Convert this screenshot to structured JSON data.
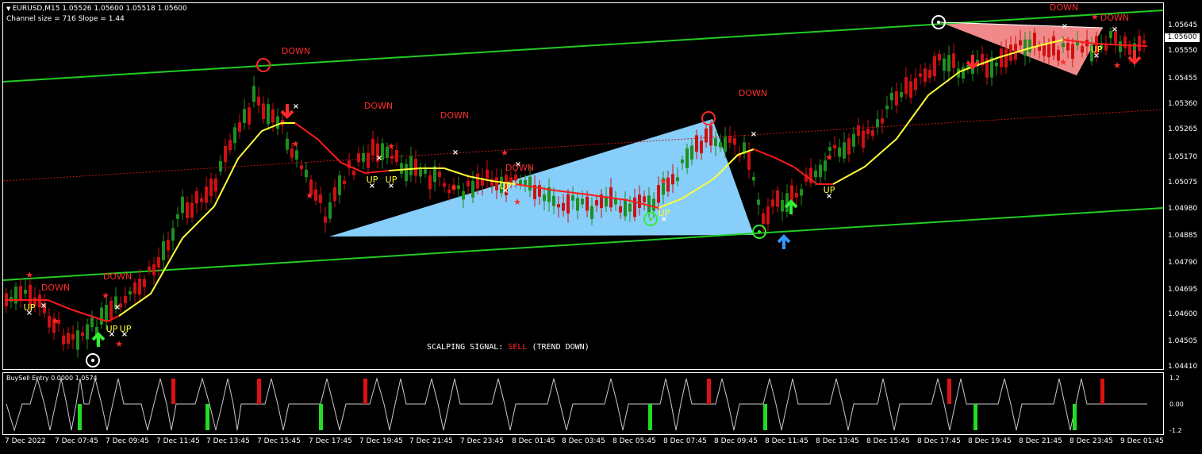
{
  "header": {
    "symbol_line": "EURUSD,M15  1.05526 1.05600 1.05518 1.05600",
    "channel_line": "Channel size = 716 Slope = 1.44"
  },
  "signal": {
    "prefix": "SCALPING SIGNAL: ",
    "action": "SELL",
    "suffix": " (TREND DOWN)"
  },
  "price_axis": {
    "current_price": "1.05600",
    "labels": [
      "1.05645",
      "1.05550",
      "1.05455",
      "1.05360",
      "1.05265",
      "1.05170",
      "1.05075",
      "1.04980",
      "1.04885",
      "1.04790",
      "1.04695",
      "1.04600",
      "1.04505",
      "1.04410"
    ]
  },
  "time_axis": {
    "labels": [
      "7 Dec 2022",
      "7 Dec 07:45",
      "7 Dec 09:45",
      "7 Dec 11:45",
      "7 Dec 13:45",
      "7 Dec 15:45",
      "7 Dec 17:45",
      "7 Dec 19:45",
      "7 Dec 21:45",
      "7 Dec 23:45",
      "8 Dec 01:45",
      "8 Dec 03:45",
      "8 Dec 05:45",
      "8 Dec 07:45",
      "8 Dec 09:45",
      "8 Dec 11:45",
      "8 Dec 13:45",
      "8 Dec 15:45",
      "8 Dec 17:45",
      "8 Dec 19:45",
      "8 Dec 21:45",
      "8 Dec 23:45",
      "9 Dec 01:45"
    ]
  },
  "chart_labels": {
    "down": "DOWN",
    "up": "UP"
  },
  "subwindow": {
    "title": "BuySell Entry 0.0000 1.0574",
    "labels": [
      "1.2",
      "0.00",
      "-1.2"
    ]
  },
  "colors": {
    "channel": "#22cc22",
    "trend_up": "#ffff33",
    "trend_down": "#ff1a1a",
    "bull_candle": "#1f8f1f",
    "bear_candle": "#d01010",
    "triangle_blue": "#87cefa",
    "triangle_red": "#f08a8a"
  }
}
